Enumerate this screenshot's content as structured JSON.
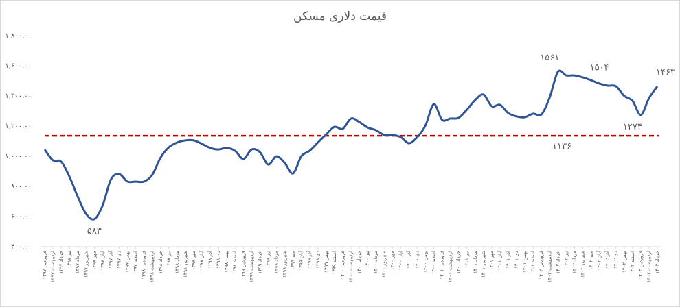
{
  "chart_data": {
    "type": "line",
    "title": "قیمت دلاری مسکن",
    "categories": [
      "فروردین ۱۳۹۷",
      "اردیبهشت ۱۳۹۷",
      "خرداد ۱۳۹۷",
      "تیر ۱۳۹۷",
      "مرداد ۱۳۹۷",
      "شهریور ۱۳۹۷",
      "مهر ۱۳۹۷",
      "آبان ۱۳۹۷",
      "آذر ۱۳۹۷",
      "دی ۱۳۹۷",
      "بهمن ۱۳۹۷",
      "اسفند ۱۳۹۷",
      "فروردین ۱۳۹۸",
      "اردیبهشت ۱۳۹۸",
      "خرداد ۱۳۹۸",
      "تیر ۱۳۹۸",
      "مرداد ۱۳۹۸",
      "شهریور ۱۳۹۸",
      "مهر ۱۳۹۸",
      "آبان ۱۳۹۸",
      "آذر ۱۳۹۸",
      "دی ۱۳۹۸",
      "بهمن ۱۳۹۸",
      "اسفند ۱۳۹۸",
      "فروردین ۱۳۹۹",
      "اردیبهشت ۱۳۹۹",
      "خرداد ۱۳۹۹",
      "تیر ۱۳۹۹",
      "مرداد ۱۳۹۹",
      "شهریور ۱۳۹۹",
      "مهر ۱۳۹۹",
      "آبان ۱۳۹۹",
      "آذر ۱۳۹۹",
      "دی ۱۳۹۹",
      "بهمن ۱۳۹۹",
      "اسفند ۱۳۹۹",
      "فروردین ۱۴۰۰",
      "اردیبهشت ۱۴۰۰",
      "خرداد ۱۴۰۰",
      "تیر ۱۴۰۰",
      "مرداد ۱۴۰۰",
      "شهریور ۱۴۰۰",
      "مهر ۱۴۰۰",
      "آبان ۱۴۰۰",
      "آذر ۱۴۰۰",
      "دی ۱۴۰۰",
      "بهمن ۱۴۰۰",
      "اسفند ۱۴۰۰",
      "فروردین ۱۴۰۱",
      "اردیبهشت ۱۴۰۱",
      "خرداد ۱۴۰۱",
      "تیر ۱۴۰۱",
      "مرداد ۱۴۰۱",
      "شهریور ۱۴۰۱",
      "مهر ۱۴۰۱",
      "آبان ۱۴۰۱",
      "آذر ۱۴۰۱",
      "دی ۱۴۰۱",
      "بهمن ۱۴۰۱",
      "اسفند ۱۴۰۱",
      "فروردین ۱۴۰۲",
      "اردیبهشت ۱۴۰۲",
      "خرداد ۱۴۰۲",
      "تیر ۱۴۰۲",
      "مرداد ۱۴۰۲",
      "شهریور ۱۴۰۲",
      "مهر ۱۴۰۲",
      "آبان ۱۴۰۲",
      "آذر ۱۴۰۲",
      "دی ۱۴۰۲",
      "بهمن ۱۴۰۲",
      "اسفند ۱۴۰۲",
      "فروردین ۱۴۰۳",
      "اردیبهشت ۱۴۰۳",
      "خرداد ۱۴۰۳"
    ],
    "values": [
      1045,
      973,
      964,
      864,
      732,
      618,
      583,
      673,
      845,
      882,
      832,
      832,
      832,
      877,
      991,
      1059,
      1091,
      1105,
      1105,
      1082,
      1055,
      1045,
      1055,
      1036,
      982,
      1045,
      1027,
      945,
      1000,
      955,
      886,
      1000,
      1036,
      1091,
      1145,
      1195,
      1182,
      1250,
      1227,
      1191,
      1173,
      1141,
      1141,
      1127,
      1086,
      1127,
      1205,
      1345,
      1241,
      1250,
      1255,
      1309,
      1373,
      1409,
      1332,
      1341,
      1286,
      1264,
      1259,
      1282,
      1277,
      1391,
      1561,
      1536,
      1536,
      1523,
      1504,
      1482,
      1468,
      1464,
      1400,
      1368,
      1274,
      1386,
      1463
    ],
    "value_labels": [
      null,
      null,
      null,
      null,
      null,
      null,
      "۵۸۳",
      null,
      null,
      null,
      null,
      null,
      null,
      null,
      null,
      null,
      null,
      null,
      null,
      null,
      null,
      null,
      null,
      null,
      null,
      null,
      null,
      null,
      null,
      null,
      null,
      null,
      null,
      null,
      null,
      null,
      null,
      null,
      null,
      null,
      null,
      null,
      null,
      null,
      null,
      null,
      null,
      null,
      null,
      null,
      null,
      null,
      null,
      null,
      null,
      null,
      null,
      null,
      null,
      null,
      null,
      null,
      "۱۵۶۱",
      null,
      null,
      null,
      "۱۵۰۴",
      null,
      null,
      null,
      null,
      null,
      "۱۲۷۴",
      null,
      "۱۴۶۳"
    ],
    "color": "#2f5597",
    "reference_line": {
      "value": 1136,
      "label": "۱۱۳۶",
      "color": "#c00000"
    },
    "ylim": [
      400,
      1800
    ],
    "yticks": [
      {
        "value": 400,
        "label": "۴۰۰.۰۰"
      },
      {
        "value": 600,
        "label": "۶۰۰.۰۰"
      },
      {
        "value": 800,
        "label": "۸۰۰.۰۰"
      },
      {
        "value": 1000,
        "label": "۱,۰۰۰.۰۰"
      },
      {
        "value": 1200,
        "label": "۱,۲۰۰.۰۰"
      },
      {
        "value": 1400,
        "label": "۱,۴۰۰.۰۰"
      },
      {
        "value": 1600,
        "label": "۱,۶۰۰.۰۰"
      },
      {
        "value": 1800,
        "label": "۱,۸۰۰.۰۰"
      }
    ]
  }
}
